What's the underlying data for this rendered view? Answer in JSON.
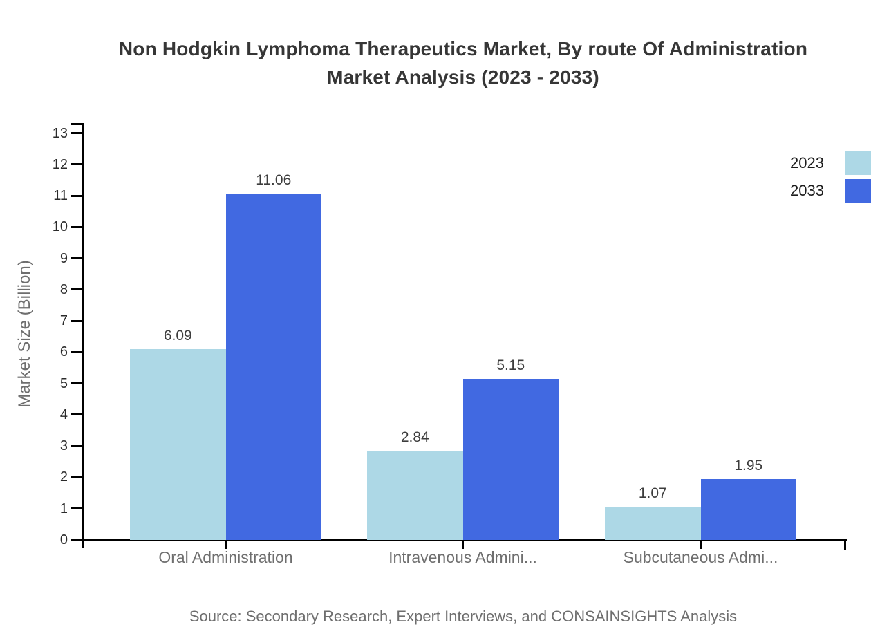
{
  "title": {
    "lines": [
      "Non Hodgkin Lymphoma Therapeutics Market, By route Of Administration",
      "Market Analysis (2023 - 2033)"
    ]
  },
  "legend": {
    "items": [
      {
        "label": "2023",
        "color": "#ADD8E6"
      },
      {
        "label": "2033",
        "color": "#4169E1"
      }
    ]
  },
  "source": "Source: Secondary Research, Expert Interviews, and CONSAINSIGHTS Analysis",
  "chart_data": {
    "type": "bar",
    "title": "Non Hodgkin Lymphoma Therapeutics Market, By route Of Administration Market Analysis (2023 - 2033)",
    "categories": [
      "Oral Administration",
      "Intravenous Admini...",
      "Subcutaneous Admi..."
    ],
    "series": [
      {
        "name": "2023",
        "color": "#ADD8E6",
        "values": [
          6.09,
          2.84,
          1.07
        ]
      },
      {
        "name": "2033",
        "color": "#4169E1",
        "values": [
          11.06,
          5.15,
          1.95
        ]
      }
    ],
    "value_labels": [
      "6.09",
      "2.84",
      "1.07",
      "11.06",
      "5.15",
      "1.95"
    ],
    "xlabel": "",
    "ylabel": "Market Size (Billion)",
    "ylim": [
      0,
      13
    ],
    "ytick_step": 1,
    "grid": false,
    "legend_position": "top-right"
  }
}
